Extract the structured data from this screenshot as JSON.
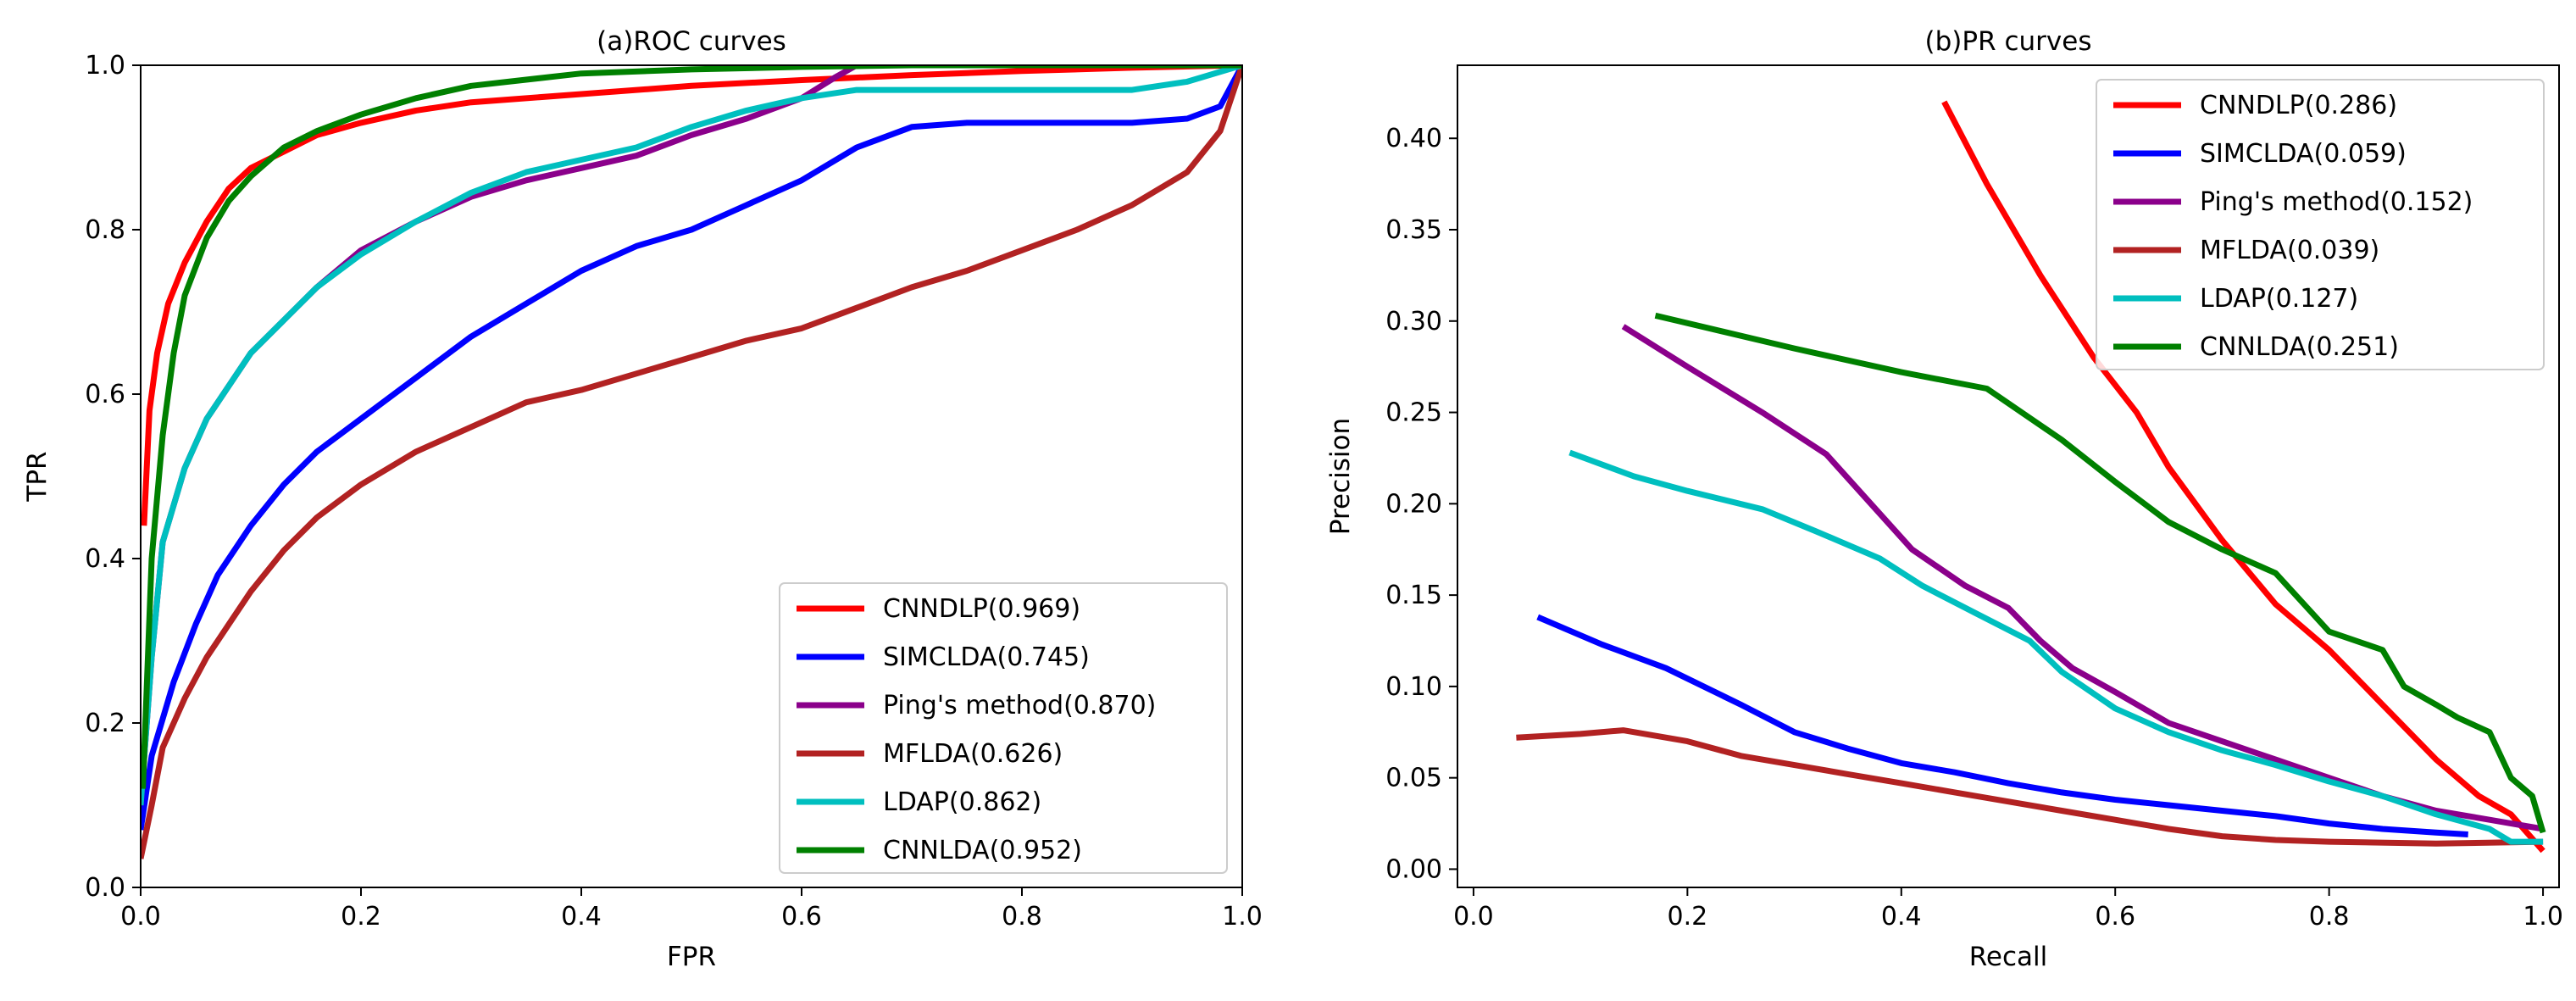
{
  "chart_data": [
    {
      "type": "line",
      "title": "(a)ROC curves",
      "xlabel": "FPR",
      "ylabel": "TPR",
      "xlim": [
        0,
        1
      ],
      "ylim": [
        0,
        1
      ],
      "xticks": [
        "0.0",
        "0.2",
        "0.4",
        "0.6",
        "0.8",
        "1.0"
      ],
      "yticks": [
        "0.0",
        "0.2",
        "0.4",
        "0.6",
        "0.8",
        "1.0"
      ],
      "grid": false,
      "legend_position": "lower-right",
      "series": [
        {
          "name": "CNNDLP(0.969)",
          "color": "#ff0000",
          "points": [
            [
              0.003,
              0.44
            ],
            [
              0.008,
              0.58
            ],
            [
              0.015,
              0.65
            ],
            [
              0.025,
              0.71
            ],
            [
              0.04,
              0.76
            ],
            [
              0.06,
              0.81
            ],
            [
              0.08,
              0.85
            ],
            [
              0.1,
              0.875
            ],
            [
              0.13,
              0.895
            ],
            [
              0.16,
              0.915
            ],
            [
              0.2,
              0.93
            ],
            [
              0.25,
              0.945
            ],
            [
              0.3,
              0.955
            ],
            [
              0.4,
              0.965
            ],
            [
              0.5,
              0.975
            ],
            [
              0.6,
              0.982
            ],
            [
              0.7,
              0.988
            ],
            [
              0.8,
              0.993
            ],
            [
              0.9,
              0.997
            ],
            [
              1.0,
              1.0
            ]
          ]
        },
        {
          "name": "SIMCLDA(0.745)",
          "color": "#0000ff",
          "points": [
            [
              0.0,
              0.07
            ],
            [
              0.01,
              0.16
            ],
            [
              0.03,
              0.25
            ],
            [
              0.05,
              0.32
            ],
            [
              0.07,
              0.38
            ],
            [
              0.1,
              0.44
            ],
            [
              0.13,
              0.49
            ],
            [
              0.16,
              0.53
            ],
            [
              0.2,
              0.57
            ],
            [
              0.25,
              0.62
            ],
            [
              0.3,
              0.67
            ],
            [
              0.35,
              0.71
            ],
            [
              0.4,
              0.75
            ],
            [
              0.45,
              0.78
            ],
            [
              0.5,
              0.8
            ],
            [
              0.55,
              0.83
            ],
            [
              0.6,
              0.86
            ],
            [
              0.65,
              0.9
            ],
            [
              0.7,
              0.925
            ],
            [
              0.75,
              0.93
            ],
            [
              0.8,
              0.93
            ],
            [
              0.85,
              0.93
            ],
            [
              0.9,
              0.93
            ],
            [
              0.95,
              0.935
            ],
            [
              0.98,
              0.95
            ],
            [
              1.0,
              1.0
            ]
          ]
        },
        {
          "name": "Ping's method(0.870)",
          "color": "#8b008b",
          "points": [
            [
              0.0,
              0.1
            ],
            [
              0.01,
              0.28
            ],
            [
              0.02,
              0.42
            ],
            [
              0.04,
              0.51
            ],
            [
              0.06,
              0.57
            ],
            [
              0.08,
              0.61
            ],
            [
              0.1,
              0.65
            ],
            [
              0.13,
              0.69
            ],
            [
              0.16,
              0.73
            ],
            [
              0.2,
              0.775
            ],
            [
              0.25,
              0.81
            ],
            [
              0.3,
              0.84
            ],
            [
              0.35,
              0.86
            ],
            [
              0.4,
              0.875
            ],
            [
              0.45,
              0.89
            ],
            [
              0.5,
              0.915
            ],
            [
              0.55,
              0.935
            ],
            [
              0.6,
              0.96
            ],
            [
              0.63,
              0.985
            ],
            [
              0.65,
              1.0
            ],
            [
              1.0,
              1.0
            ]
          ]
        },
        {
          "name": "MFLDA(0.626)",
          "color": "#b22222",
          "points": [
            [
              0.0,
              0.035
            ],
            [
              0.01,
              0.1
            ],
            [
              0.02,
              0.17
            ],
            [
              0.04,
              0.23
            ],
            [
              0.06,
              0.28
            ],
            [
              0.08,
              0.32
            ],
            [
              0.1,
              0.36
            ],
            [
              0.13,
              0.41
            ],
            [
              0.16,
              0.45
            ],
            [
              0.2,
              0.49
            ],
            [
              0.25,
              0.53
            ],
            [
              0.3,
              0.56
            ],
            [
              0.35,
              0.59
            ],
            [
              0.4,
              0.605
            ],
            [
              0.45,
              0.625
            ],
            [
              0.5,
              0.645
            ],
            [
              0.55,
              0.665
            ],
            [
              0.6,
              0.68
            ],
            [
              0.65,
              0.705
            ],
            [
              0.7,
              0.73
            ],
            [
              0.75,
              0.75
            ],
            [
              0.8,
              0.775
            ],
            [
              0.85,
              0.8
            ],
            [
              0.9,
              0.83
            ],
            [
              0.95,
              0.87
            ],
            [
              0.98,
              0.92
            ],
            [
              1.0,
              1.0
            ]
          ]
        },
        {
          "name": "LDAP(0.862)",
          "color": "#00bfbf",
          "points": [
            [
              0.0,
              0.1
            ],
            [
              0.01,
              0.28
            ],
            [
              0.02,
              0.42
            ],
            [
              0.04,
              0.51
            ],
            [
              0.06,
              0.57
            ],
            [
              0.08,
              0.61
            ],
            [
              0.1,
              0.65
            ],
            [
              0.13,
              0.69
            ],
            [
              0.16,
              0.73
            ],
            [
              0.2,
              0.77
            ],
            [
              0.25,
              0.81
            ],
            [
              0.3,
              0.845
            ],
            [
              0.35,
              0.87
            ],
            [
              0.4,
              0.885
            ],
            [
              0.45,
              0.9
            ],
            [
              0.5,
              0.925
            ],
            [
              0.55,
              0.945
            ],
            [
              0.6,
              0.96
            ],
            [
              0.65,
              0.97
            ],
            [
              0.7,
              0.97
            ],
            [
              0.8,
              0.97
            ],
            [
              0.9,
              0.97
            ],
            [
              0.95,
              0.98
            ],
            [
              1.0,
              1.0
            ]
          ]
        },
        {
          "name": "CNNLDA(0.952)",
          "color": "#008000",
          "points": [
            [
              0.002,
              0.12
            ],
            [
              0.01,
              0.4
            ],
            [
              0.02,
              0.55
            ],
            [
              0.03,
              0.65
            ],
            [
              0.04,
              0.72
            ],
            [
              0.06,
              0.79
            ],
            [
              0.08,
              0.835
            ],
            [
              0.1,
              0.865
            ],
            [
              0.13,
              0.9
            ],
            [
              0.16,
              0.92
            ],
            [
              0.2,
              0.94
            ],
            [
              0.25,
              0.96
            ],
            [
              0.3,
              0.975
            ],
            [
              0.4,
              0.99
            ],
            [
              0.5,
              0.995
            ],
            [
              0.6,
              0.998
            ],
            [
              0.7,
              1.0
            ],
            [
              1.0,
              1.0
            ]
          ]
        }
      ]
    },
    {
      "type": "line",
      "title": "(b)PR curves",
      "xlabel": "Recall",
      "ylabel": "Precision",
      "xlim": [
        -0.015,
        1.015
      ],
      "ylim": [
        -0.01,
        0.44
      ],
      "xticks": [
        "0.0",
        "0.2",
        "0.4",
        "0.6",
        "0.8",
        "1.0"
      ],
      "yticks": [
        "0.00",
        "0.05",
        "0.10",
        "0.15",
        "0.20",
        "0.25",
        "0.30",
        "0.35",
        "0.40"
      ],
      "grid": false,
      "legend_position": "upper-right",
      "series": [
        {
          "name": "CNNDLP(0.286)",
          "color": "#ff0000",
          "points": [
            [
              0.44,
              0.42
            ],
            [
              0.48,
              0.375
            ],
            [
              0.53,
              0.325
            ],
            [
              0.58,
              0.28
            ],
            [
              0.62,
              0.25
            ],
            [
              0.65,
              0.22
            ],
            [
              0.7,
              0.18
            ],
            [
              0.75,
              0.145
            ],
            [
              0.8,
              0.12
            ],
            [
              0.85,
              0.09
            ],
            [
              0.9,
              0.06
            ],
            [
              0.94,
              0.04
            ],
            [
              0.97,
              0.03
            ],
            [
              1.0,
              0.01
            ]
          ]
        },
        {
          "name": "SIMCLDA(0.059)",
          "color": "#0000ff",
          "points": [
            [
              0.06,
              0.138
            ],
            [
              0.12,
              0.123
            ],
            [
              0.18,
              0.11
            ],
            [
              0.25,
              0.09
            ],
            [
              0.3,
              0.075
            ],
            [
              0.35,
              0.066
            ],
            [
              0.4,
              0.058
            ],
            [
              0.45,
              0.053
            ],
            [
              0.5,
              0.047
            ],
            [
              0.55,
              0.042
            ],
            [
              0.6,
              0.038
            ],
            [
              0.65,
              0.035
            ],
            [
              0.7,
              0.032
            ],
            [
              0.75,
              0.029
            ],
            [
              0.8,
              0.025
            ],
            [
              0.85,
              0.022
            ],
            [
              0.9,
              0.02
            ],
            [
              0.93,
              0.019
            ]
          ]
        },
        {
          "name": "Ping's method(0.152)",
          "color": "#8b008b",
          "points": [
            [
              0.14,
              0.297
            ],
            [
              0.2,
              0.275
            ],
            [
              0.27,
              0.25
            ],
            [
              0.33,
              0.227
            ],
            [
              0.41,
              0.175
            ],
            [
              0.46,
              0.155
            ],
            [
              0.5,
              0.143
            ],
            [
              0.53,
              0.125
            ],
            [
              0.56,
              0.11
            ],
            [
              0.6,
              0.097
            ],
            [
              0.65,
              0.08
            ],
            [
              0.7,
              0.07
            ],
            [
              0.75,
              0.06
            ],
            [
              0.8,
              0.05
            ],
            [
              0.85,
              0.04
            ],
            [
              0.9,
              0.032
            ],
            [
              0.95,
              0.027
            ],
            [
              1.0,
              0.022
            ]
          ]
        },
        {
          "name": "MFLDA(0.039)",
          "color": "#b22222",
          "points": [
            [
              0.04,
              0.072
            ],
            [
              0.1,
              0.074
            ],
            [
              0.14,
              0.076
            ],
            [
              0.2,
              0.07
            ],
            [
              0.25,
              0.062
            ],
            [
              0.3,
              0.057
            ],
            [
              0.35,
              0.052
            ],
            [
              0.4,
              0.047
            ],
            [
              0.45,
              0.042
            ],
            [
              0.5,
              0.037
            ],
            [
              0.55,
              0.032
            ],
            [
              0.6,
              0.027
            ],
            [
              0.65,
              0.022
            ],
            [
              0.7,
              0.018
            ],
            [
              0.75,
              0.016
            ],
            [
              0.8,
              0.015
            ],
            [
              0.9,
              0.014
            ],
            [
              1.0,
              0.015
            ]
          ]
        },
        {
          "name": "LDAP(0.127)",
          "color": "#00bfbf",
          "points": [
            [
              0.09,
              0.228
            ],
            [
              0.15,
              0.215
            ],
            [
              0.2,
              0.207
            ],
            [
              0.27,
              0.197
            ],
            [
              0.32,
              0.185
            ],
            [
              0.38,
              0.17
            ],
            [
              0.42,
              0.155
            ],
            [
              0.47,
              0.14
            ],
            [
              0.52,
              0.125
            ],
            [
              0.55,
              0.108
            ],
            [
              0.6,
              0.088
            ],
            [
              0.65,
              0.075
            ],
            [
              0.7,
              0.065
            ],
            [
              0.75,
              0.057
            ],
            [
              0.8,
              0.048
            ],
            [
              0.85,
              0.04
            ],
            [
              0.9,
              0.03
            ],
            [
              0.95,
              0.022
            ],
            [
              0.97,
              0.015
            ],
            [
              1.0,
              0.015
            ]
          ]
        },
        {
          "name": "CNNLDA(0.251)",
          "color": "#008000",
          "points": [
            [
              0.17,
              0.303
            ],
            [
              0.3,
              0.285
            ],
            [
              0.4,
              0.272
            ],
            [
              0.48,
              0.263
            ],
            [
              0.55,
              0.235
            ],
            [
              0.6,
              0.212
            ],
            [
              0.65,
              0.19
            ],
            [
              0.7,
              0.175
            ],
            [
              0.75,
              0.162
            ],
            [
              0.8,
              0.13
            ],
            [
              0.85,
              0.12
            ],
            [
              0.87,
              0.1
            ],
            [
              0.9,
              0.09
            ],
            [
              0.92,
              0.083
            ],
            [
              0.95,
              0.075
            ],
            [
              0.97,
              0.05
            ],
            [
              0.99,
              0.04
            ],
            [
              1.0,
              0.02
            ]
          ]
        }
      ]
    }
  ]
}
